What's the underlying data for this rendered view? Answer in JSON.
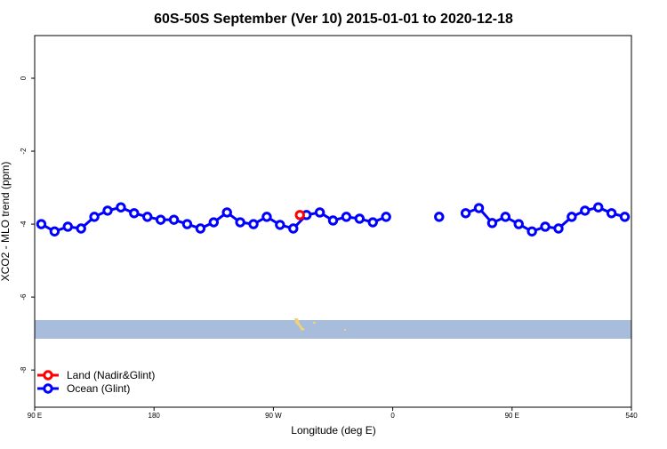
{
  "chart_data": {
    "type": "line",
    "title": "60S-50S September (Ver 10)   2015-01-01 to 2020-12-18",
    "x_label": "Longitude (deg E)",
    "y_label": "XCO2 - MLO trend (ppm)",
    "xlim": [
      90,
      540
    ],
    "ylim": [
      -9.02,
      1.17
    ],
    "xticks": [
      {
        "value": 90,
        "label": "90 E"
      },
      180,
      {
        "value": 270,
        "label": "90 W"
      },
      {
        "value": 360,
        "label": "0"
      },
      {
        "value": 450,
        "label": "90 E"
      },
      540
    ],
    "yticks": [
      0,
      -2,
      -4,
      -6,
      -8
    ],
    "grid": false,
    "legend": "bottom-left",
    "series": [
      {
        "name": "Land (Nadir&Glint)",
        "color": "#ff0000",
        "x": [
          290
        ],
        "values": [
          -3.75
        ]
      },
      {
        "name": "Ocean (Glint)",
        "color": "#0000ff",
        "x": [
          95,
          105,
          115,
          125,
          135,
          145,
          155,
          165,
          175,
          185,
          195,
          205,
          215,
          225,
          235,
          245,
          255,
          265,
          275,
          285,
          295,
          305,
          315,
          325,
          335,
          345,
          355,
          365,
          375,
          385,
          395,
          405,
          415,
          425,
          435,
          445,
          455,
          465,
          475,
          485,
          495,
          505,
          515,
          525,
          535
        ],
        "values": [
          -4.0,
          -4.2,
          -4.07,
          -4.12,
          -3.8,
          -3.63,
          -3.54,
          -3.7,
          -3.8,
          -3.88,
          -3.88,
          -4.0,
          -4.12,
          -3.95,
          -3.68,
          -3.95,
          -4.0,
          -3.8,
          -4.02,
          -4.12,
          -3.75,
          -3.68,
          -3.9,
          -3.8,
          -3.85,
          -3.95,
          -3.8,
          null,
          null,
          null,
          -3.8,
          null,
          -3.7,
          -3.56,
          -3.97,
          -3.8,
          -4.0,
          -4.2,
          -4.07,
          -4.12,
          -3.8,
          -3.63,
          -3.54,
          -3.7,
          -3.8
        ]
      }
    ]
  }
}
